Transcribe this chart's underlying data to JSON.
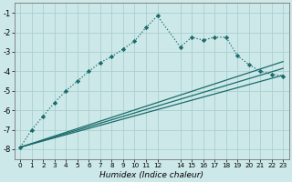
{
  "xlabel": "Humidex (Indice chaleur)",
  "bg_color": "#cde8e8",
  "grid_color": "#aacfcf",
  "line_color": "#1a6b6b",
  "xlim": [
    -0.5,
    23.5
  ],
  "ylim": [
    -8.5,
    -0.5
  ],
  "yticks": [
    -8,
    -7,
    -6,
    -5,
    -4,
    -3,
    -2,
    -1
  ],
  "xtick_positions": [
    0,
    1,
    2,
    3,
    4,
    5,
    6,
    7,
    8,
    9,
    10,
    11,
    12,
    14,
    15,
    16,
    17,
    18,
    19,
    20,
    21,
    22,
    23
  ],
  "xtick_labels": [
    "0",
    "1",
    "2",
    "3",
    "4",
    "5",
    "6",
    "7",
    "8",
    "9",
    "10",
    "11",
    "12",
    "14",
    "15",
    "16",
    "17",
    "18",
    "19",
    "20",
    "21",
    "22",
    "23"
  ],
  "dotted_x": [
    0,
    1,
    2,
    3,
    4,
    5,
    6,
    7,
    8,
    9,
    10,
    11,
    12,
    14,
    15,
    16,
    17,
    18,
    19,
    20,
    21,
    22,
    23
  ],
  "dotted_y": [
    -7.9,
    -7.0,
    -6.3,
    -5.6,
    -5.0,
    -4.5,
    -4.0,
    -3.55,
    -3.25,
    -2.85,
    -2.45,
    -1.75,
    -1.15,
    -2.75,
    -2.25,
    -2.4,
    -2.25,
    -2.25,
    -3.2,
    -3.65,
    -4.0,
    -4.15,
    -4.25
  ],
  "line1_x": [
    0,
    23
  ],
  "line1_y": [
    -7.9,
    -4.2
  ],
  "line2_x": [
    0,
    23
  ],
  "line2_y": [
    -7.9,
    -3.85
  ],
  "line3_x": [
    0,
    23
  ],
  "line3_y": [
    -7.9,
    -3.5
  ]
}
